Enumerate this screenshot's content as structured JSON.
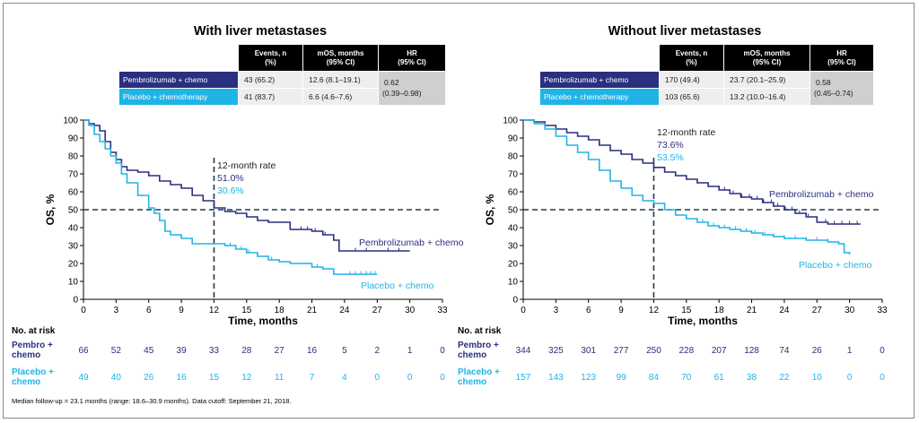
{
  "colors": {
    "pembro": "#2b2f7f",
    "placebo": "#20b4e6",
    "header": "#000000",
    "hr_cell": "#cfcfcf",
    "cell": "#eeeeee",
    "dash": "#1f3a4a"
  },
  "footnote": "Median follow-up = 23.1 months (range: 18.6–30.9 months). Data cutoff: September 21, 2018.",
  "risk_header": "No. at risk",
  "chart_data": [
    {
      "type": "line",
      "title": "With liver metastases",
      "xlabel": "Time, months",
      "ylabel": "OS, %",
      "xlim": [
        0,
        33
      ],
      "ylim": [
        0,
        100
      ],
      "x_ticks": [
        0,
        3,
        6,
        9,
        12,
        15,
        18,
        21,
        24,
        27,
        30,
        33
      ],
      "y_ticks": [
        0,
        10,
        20,
        30,
        40,
        50,
        60,
        70,
        80,
        90,
        100
      ],
      "reference_line_y": 50,
      "reference_line_x": 12,
      "annotation": {
        "title": "12-month rate",
        "pembro": "51.0%",
        "placebo": "30.6%"
      },
      "table": {
        "headers": [
          "Events, n (%)",
          "mOS, months (95% CI)",
          "HR (95% CI)"
        ],
        "rows": [
          {
            "arm": "Pembrolizumab + chemo",
            "events": "43 (65.2)",
            "mos": "12.6 (8.1–19.1)"
          },
          {
            "arm": "Placebo + chemotherapy",
            "events": "41 (83.7)",
            "mos": "6.6 (4.6–7.6)"
          }
        ],
        "hr_value": "0.62",
        "hr_ci": "(0.39–0.98)"
      },
      "series": [
        {
          "name": "Pembrolizumab + chemo",
          "key": "pembro",
          "points": [
            [
              0,
              100
            ],
            [
              0.5,
              98
            ],
            [
              1,
              97
            ],
            [
              1.5,
              94
            ],
            [
              2,
              88
            ],
            [
              2.5,
              82
            ],
            [
              3,
              78
            ],
            [
              3.5,
              74
            ],
            [
              4,
              72
            ],
            [
              5,
              71
            ],
            [
              6,
              69
            ],
            [
              7,
              66
            ],
            [
              8,
              64
            ],
            [
              9,
              62
            ],
            [
              10,
              58
            ],
            [
              11,
              55
            ],
            [
              12,
              51
            ],
            [
              13,
              49
            ],
            [
              14,
              48
            ],
            [
              15,
              46
            ],
            [
              16,
              44
            ],
            [
              17,
              43
            ],
            [
              18,
              43
            ],
            [
              19,
              39
            ],
            [
              21,
              38
            ],
            [
              22,
              36
            ],
            [
              23,
              33
            ],
            [
              23.5,
              27
            ],
            [
              24,
              27
            ],
            [
              27,
              27
            ],
            [
              30,
              27
            ]
          ],
          "censor_x": [
            20,
            20.6,
            21.3,
            22.2,
            25,
            26,
            28,
            29
          ]
        },
        {
          "name": "Placebo + chemo",
          "key": "placebo",
          "points": [
            [
              0,
              100
            ],
            [
              0.5,
              97
            ],
            [
              1,
              92
            ],
            [
              1.5,
              88
            ],
            [
              2,
              84
            ],
            [
              2.5,
              80
            ],
            [
              3,
              76
            ],
            [
              3.5,
              70
            ],
            [
              4,
              65
            ],
            [
              5,
              58
            ],
            [
              6,
              51
            ],
            [
              6.5,
              48
            ],
            [
              7,
              44
            ],
            [
              7.5,
              38
            ],
            [
              8,
              36
            ],
            [
              9,
              34
            ],
            [
              10,
              31
            ],
            [
              12,
              31
            ],
            [
              13,
              30
            ],
            [
              14,
              28
            ],
            [
              15,
              26
            ],
            [
              16,
              24
            ],
            [
              17,
              22
            ],
            [
              18,
              21
            ],
            [
              19,
              20
            ],
            [
              20,
              20
            ],
            [
              21,
              18
            ],
            [
              22,
              17
            ],
            [
              23,
              14
            ],
            [
              24,
              14
            ],
            [
              27,
              14
            ]
          ],
          "censor_x": [
            13.5,
            14.5,
            15.2,
            17.3,
            21.5,
            24.5,
            25,
            25.5,
            26,
            26.4,
            26.8
          ]
        }
      ],
      "risk": {
        "times": [
          0,
          3,
          6,
          9,
          12,
          15,
          18,
          21,
          24,
          27,
          30,
          33
        ],
        "rows": [
          {
            "label_lines": [
              "Pembro +",
              "chemo"
            ],
            "key": "pembro",
            "values": [
              66,
              52,
              45,
              39,
              33,
              28,
              27,
              16,
              5,
              2,
              1,
              0
            ]
          },
          {
            "label_lines": [
              "Placebo +",
              "chemo"
            ],
            "key": "placebo",
            "values": [
              49,
              40,
              26,
              16,
              15,
              12,
              11,
              7,
              4,
              0,
              0,
              0
            ]
          }
        ]
      }
    },
    {
      "type": "line",
      "title": "Without liver metastases",
      "xlabel": "Time, months",
      "ylabel": "OS, %",
      "xlim": [
        0,
        33
      ],
      "ylim": [
        0,
        100
      ],
      "x_ticks": [
        0,
        3,
        6,
        9,
        12,
        15,
        18,
        21,
        24,
        27,
        30,
        33
      ],
      "y_ticks": [
        0,
        10,
        20,
        30,
        40,
        50,
        60,
        70,
        80,
        90,
        100
      ],
      "reference_line_y": 50,
      "reference_line_x": 12,
      "annotation": {
        "title": "12-month rate",
        "pembro": "73.6%",
        "placebo": "53.5%"
      },
      "table": {
        "headers": [
          "Events, n (%)",
          "mOS, months (95% CI)",
          "HR (95% CI)"
        ],
        "rows": [
          {
            "arm": "Pembrolizumab + chemo",
            "events": "170 (49.4)",
            "mos": "23.7 (20.1–25.9)"
          },
          {
            "arm": "Placebo + chemotherapy",
            "events": "103 (65.6)",
            "mos": "13.2 (10.0–16.4)"
          }
        ],
        "hr_value": "0.58",
        "hr_ci": "(0.45–0.74)"
      },
      "series": [
        {
          "name": "Pembrolizumab + chemo",
          "key": "pembro",
          "points": [
            [
              0,
              100
            ],
            [
              1,
              99
            ],
            [
              2,
              97
            ],
            [
              3,
              95
            ],
            [
              4,
              93
            ],
            [
              5,
              91
            ],
            [
              6,
              89
            ],
            [
              7,
              86
            ],
            [
              8,
              83
            ],
            [
              9,
              81
            ],
            [
              10,
              78
            ],
            [
              11,
              76
            ],
            [
              12,
              73.6
            ],
            [
              13,
              71
            ],
            [
              14,
              69
            ],
            [
              15,
              67
            ],
            [
              16,
              65
            ],
            [
              17,
              63
            ],
            [
              18,
              61
            ],
            [
              19,
              59
            ],
            [
              20,
              57
            ],
            [
              21,
              56
            ],
            [
              22,
              54
            ],
            [
              23,
              52
            ],
            [
              24,
              50
            ],
            [
              25,
              48
            ],
            [
              26,
              46
            ],
            [
              27,
              43
            ],
            [
              28,
              42
            ],
            [
              31,
              42
            ]
          ],
          "censor_x": [
            18.5,
            19.3,
            20.1,
            20.8,
            21.5,
            22.1,
            22.8,
            23.4,
            24.1,
            24.7,
            25.4,
            26.2,
            27,
            27.8,
            28.6,
            29.3,
            30,
            30.7
          ]
        },
        {
          "name": "Placebo + chemo",
          "key": "placebo",
          "points": [
            [
              0,
              100
            ],
            [
              1,
              98
            ],
            [
              2,
              95
            ],
            [
              3,
              91
            ],
            [
              4,
              86
            ],
            [
              5,
              82
            ],
            [
              6,
              78
            ],
            [
              7,
              72
            ],
            [
              8,
              66
            ],
            [
              9,
              62
            ],
            [
              10,
              58
            ],
            [
              11,
              55
            ],
            [
              12,
              53.5
            ],
            [
              13,
              50
            ],
            [
              14,
              47
            ],
            [
              15,
              45
            ],
            [
              16,
              43
            ],
            [
              17,
              41
            ],
            [
              18,
              40
            ],
            [
              19,
              39
            ],
            [
              20,
              38
            ],
            [
              21,
              37
            ],
            [
              22,
              36
            ],
            [
              23,
              35
            ],
            [
              24,
              34
            ],
            [
              26,
              33
            ],
            [
              28,
              32
            ],
            [
              29,
              31
            ],
            [
              29.5,
              26
            ],
            [
              30,
              25
            ]
          ],
          "censor_x": [
            16.5,
            17.5,
            18.5,
            19.5,
            20.5,
            21.3,
            22.2,
            23,
            24,
            25,
            26,
            27,
            28
          ]
        }
      ],
      "risk": {
        "times": [
          0,
          3,
          6,
          9,
          12,
          15,
          18,
          21,
          24,
          27,
          30,
          33
        ],
        "rows": [
          {
            "label_lines": [
              "Pembro +",
              "chemo"
            ],
            "key": "pembro",
            "values": [
              344,
              325,
              301,
              277,
              250,
              228,
              207,
              128,
              74,
              26,
              1,
              0
            ]
          },
          {
            "label_lines": [
              "Placebo +",
              "chemo"
            ],
            "key": "placebo",
            "values": [
              157,
              143,
              123,
              99,
              84,
              70,
              61,
              38,
              22,
              10,
              0,
              0
            ]
          }
        ]
      }
    }
  ]
}
